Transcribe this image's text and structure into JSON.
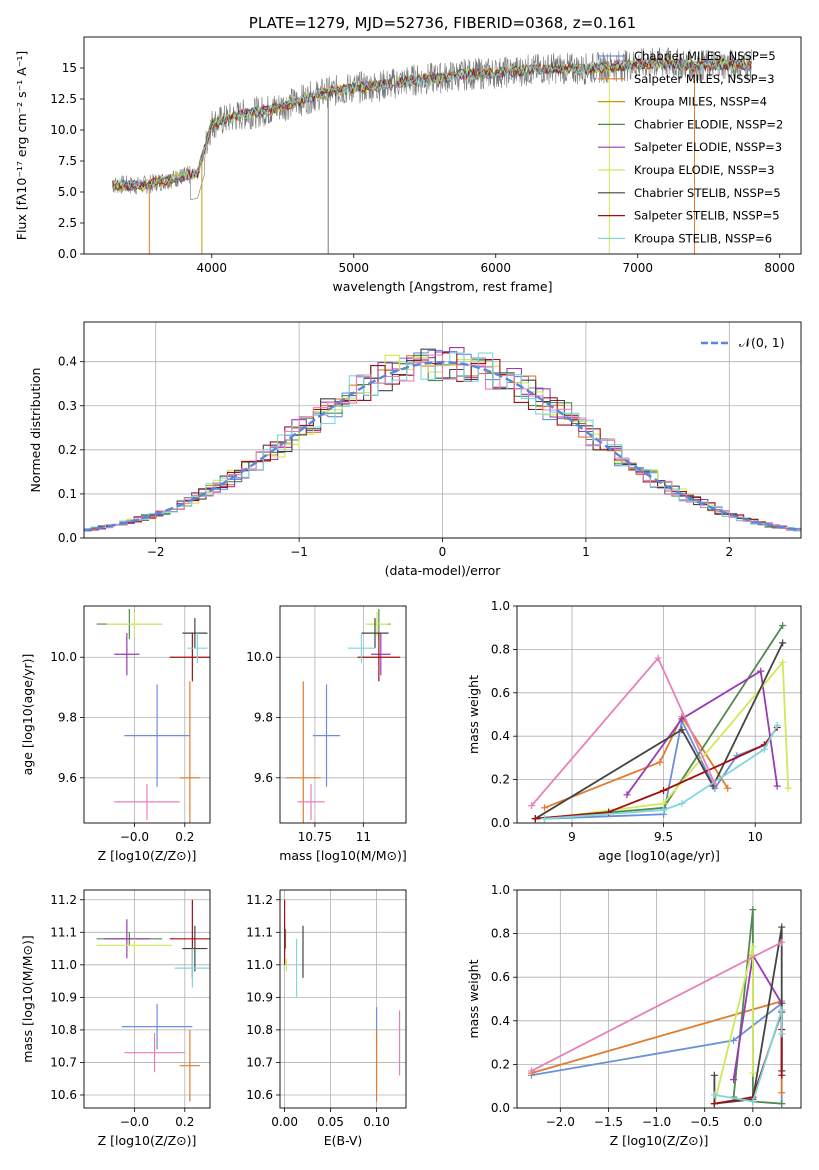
{
  "colors": {
    "blue": "#6a8fdc",
    "orange": "#e07c2c",
    "green": "#4f8a52",
    "purple": "#9a3ab5",
    "yellow": "#d0e85a",
    "dark": "#444444",
    "red": "#a01010",
    "cyan": "#7fd7dc",
    "pink": "#e880b8",
    "gray": "#888888",
    "normal": "#5588dd"
  },
  "chart_data": [
    {
      "id": "spectrum",
      "type": "line",
      "title": "PLATE=1279, MJD=52736, FIBERID=0368, z=0.161",
      "xlabel": "wavelength [Angstrom, rest frame]",
      "ylabel": "Flux [fλ10⁻¹⁷ erg cm⁻² s⁻¹ A⁻¹]",
      "xlim": [
        3100,
        8150
      ],
      "ylim": [
        0,
        17.5
      ],
      "xticks": [
        4000,
        5000,
        6000,
        7000,
        8000
      ],
      "yticks": [
        0.0,
        2.5,
        5.0,
        7.5,
        10.0,
        12.5,
        15.0
      ],
      "grid": false,
      "legend_position": "right",
      "legend": [
        "Chabrier MILES, NSSP=5",
        "Salpeter MILES, NSSP=3",
        "Kroupa MILES, NSSP=4",
        "Chabrier ELODIE, NSSP=2",
        "Salpeter ELODIE, NSSP=3",
        "Kroupa ELODIE, NSSP=3",
        "Chabrier STELIB, NSSP=5",
        "Salpeter STELIB, NSSP=5",
        "Kroupa STELIB, NSSP=6"
      ],
      "legend_colors": [
        "#6a8fdc",
        "#e07c2c",
        "#c0a000",
        "#4f8a52",
        "#9a3ab5",
        "#d0e85a",
        "#444444",
        "#a01010",
        "#7fd7dc"
      ],
      "continuum": {
        "x": [
          3300,
          3500,
          3700,
          3900,
          4000,
          4200,
          4400,
          4600,
          4800,
          5000,
          5200,
          5400,
          5600,
          5800,
          6000,
          6200,
          6400,
          6600,
          6800,
          7000,
          7200,
          7400,
          7600,
          7800
        ],
        "y": [
          5.6,
          5.5,
          6.0,
          6.5,
          10.5,
          11.2,
          11.6,
          12.3,
          13.0,
          13.4,
          13.6,
          14.0,
          14.2,
          14.5,
          14.6,
          14.8,
          15.0,
          14.9,
          15.1,
          15.3,
          15.4,
          15.2,
          15.3,
          15.2
        ]
      }
    },
    {
      "id": "residuals",
      "type": "histogram",
      "xlabel": "(data-model)/error",
      "ylabel": "Normed distribution",
      "xlim": [
        -2.5,
        2.5
      ],
      "ylim": [
        0,
        0.49
      ],
      "xticks": [
        -2,
        -1,
        0,
        1,
        2
      ],
      "yticks": [
        0.0,
        0.1,
        0.2,
        0.3,
        0.4
      ],
      "grid": true,
      "legend_position": "top-right",
      "legend": "𝒩(0, 1)",
      "bin_width": 0.1
    },
    {
      "id": "age-vs-z",
      "type": "scatter",
      "xlabel": "Z [log10(Z/Z⊙)]",
      "ylabel": "age  [log10(age/yr)]",
      "xlim": [
        -0.2,
        0.3
      ],
      "ylim": [
        9.45,
        10.17
      ],
      "xticks": [
        -0.0,
        0.2
      ],
      "xtick_labels": [
        "−0.0",
        "0.2"
      ],
      "yticks": [
        9.6,
        9.8,
        10.0
      ],
      "grid": true,
      "points": [
        {
          "x": 0.09,
          "xe": 0.13,
          "y": 9.74,
          "ye": 0.17,
          "c": "blue"
        },
        {
          "x": 0.22,
          "xe": 0.04,
          "y": 9.6,
          "ye": 0.32,
          "c": "orange"
        },
        {
          "x": -0.02,
          "xe": 0.13,
          "y": 10.11,
          "ye": 0.05,
          "c": "green"
        },
        {
          "x": -0.03,
          "xe": 0.05,
          "y": 10.01,
          "ye": 0.07,
          "c": "purple"
        },
        {
          "x": 0.0,
          "xe": 0.11,
          "y": 10.11,
          "ye": 0.04,
          "c": "yellow"
        },
        {
          "x": 0.24,
          "xe": 0.05,
          "y": 10.08,
          "ye": 0.05,
          "c": "dark"
        },
        {
          "x": 0.23,
          "xe": 0.09,
          "y": 10.0,
          "ye": 0.08,
          "c": "red"
        },
        {
          "x": 0.25,
          "xe": 0.04,
          "y": 10.03,
          "ye": 0.05,
          "c": "cyan"
        },
        {
          "x": 0.05,
          "xe": 0.13,
          "y": 9.52,
          "ye": 0.06,
          "c": "pink"
        }
      ]
    },
    {
      "id": "age-vs-mass",
      "type": "scatter",
      "xlabel": "mass [log10(M/M⊙)]",
      "ylabel": "",
      "xlim": [
        10.57,
        11.22
      ],
      "ylim": [
        9.45,
        10.17
      ],
      "xticks": [
        10.75,
        11.0
      ],
      "yticks": [
        9.6,
        9.8,
        10.0
      ],
      "grid": true,
      "points": [
        {
          "x": 10.81,
          "xe": 0.07,
          "y": 9.74,
          "ye": 0.17,
          "c": "blue"
        },
        {
          "x": 10.69,
          "xe": 0.09,
          "y": 9.6,
          "ye": 0.32,
          "c": "orange"
        },
        {
          "x": 11.08,
          "xe": 0.06,
          "y": 10.11,
          "ye": 0.05,
          "c": "green"
        },
        {
          "x": 11.09,
          "xe": 0.05,
          "y": 10.01,
          "ye": 0.07,
          "c": "purple"
        },
        {
          "x": 11.07,
          "xe": 0.06,
          "y": 10.11,
          "ye": 0.04,
          "c": "yellow"
        },
        {
          "x": 11.06,
          "xe": 0.07,
          "y": 10.08,
          "ye": 0.05,
          "c": "dark"
        },
        {
          "x": 11.08,
          "xe": 0.11,
          "y": 10.0,
          "ye": 0.08,
          "c": "red"
        },
        {
          "x": 10.99,
          "xe": 0.07,
          "y": 10.03,
          "ye": 0.05,
          "c": "cyan"
        },
        {
          "x": 10.73,
          "xe": 0.07,
          "y": 9.52,
          "ye": 0.06,
          "c": "pink"
        }
      ]
    },
    {
      "id": "weight-vs-age",
      "type": "line",
      "xlabel": "age  [log10(age/yr)]",
      "ylabel": "mass weight",
      "xlim": [
        8.7,
        10.25
      ],
      "ylim": [
        0,
        1.0
      ],
      "xticks": [
        9.0,
        9.5,
        10.0
      ],
      "yticks": [
        0.0,
        0.2,
        0.4,
        0.6,
        0.8,
        1.0
      ],
      "grid": true,
      "series": [
        {
          "c": "blue",
          "x": [
            8.85,
            9.5,
            9.6,
            9.78,
            9.9,
            10.05
          ],
          "y": [
            0.02,
            0.04,
            0.47,
            0.16,
            0.31,
            0.36
          ]
        },
        {
          "c": "orange",
          "x": [
            8.85,
            9.48,
            9.6,
            9.85
          ],
          "y": [
            0.07,
            0.28,
            0.49,
            0.16
          ]
        },
        {
          "c": "green",
          "x": [
            8.8,
            9.5,
            10.15
          ],
          "y": [
            0.02,
            0.07,
            0.91
          ]
        },
        {
          "c": "purple",
          "x": [
            9.3,
            9.6,
            10.03,
            10.12
          ],
          "y": [
            0.13,
            0.48,
            0.7,
            0.17
          ]
        },
        {
          "c": "yellow",
          "x": [
            8.85,
            9.5,
            10.15,
            10.18
          ],
          "y": [
            0.02,
            0.09,
            0.74,
            0.16
          ]
        },
        {
          "c": "dark",
          "x": [
            8.8,
            9.6,
            9.77,
            10.15
          ],
          "y": [
            0.02,
            0.43,
            0.17,
            0.83
          ]
        },
        {
          "c": "red",
          "x": [
            8.8,
            9.2,
            9.5,
            10.05,
            10.12
          ],
          "y": [
            0.02,
            0.05,
            0.15,
            0.36,
            0.44
          ]
        },
        {
          "c": "cyan",
          "x": [
            8.85,
            9.5,
            9.6,
            10.05,
            10.12
          ],
          "y": [
            0.02,
            0.06,
            0.09,
            0.34,
            0.45
          ]
        },
        {
          "c": "pink",
          "x": [
            8.78,
            9.47,
            9.78
          ],
          "y": [
            0.08,
            0.76,
            0.18
          ]
        }
      ]
    },
    {
      "id": "mass-vs-z",
      "type": "scatter",
      "xlabel": "Z [log10(Z/Z⊙)]",
      "ylabel": "mass [log10(M/M⊙)]",
      "xlim": [
        -0.2,
        0.3
      ],
      "ylim": [
        10.56,
        11.23
      ],
      "xticks": [
        -0.0,
        0.2
      ],
      "xtick_labels": [
        "−0.0",
        "0.2"
      ],
      "yticks": [
        10.6,
        10.7,
        10.8,
        10.9,
        11.0,
        11.1,
        11.2
      ],
      "grid": true,
      "points": [
        {
          "x": 0.09,
          "xe": 0.14,
          "y": 10.81,
          "ye": 0.07,
          "c": "blue"
        },
        {
          "x": 0.22,
          "xe": 0.04,
          "y": 10.69,
          "ye": 0.11,
          "c": "orange"
        },
        {
          "x": -0.02,
          "xe": 0.13,
          "y": 11.08,
          "ye": 0.02,
          "c": "green"
        },
        {
          "x": -0.03,
          "xe": 0.09,
          "y": 11.08,
          "ye": 0.06,
          "c": "purple"
        },
        {
          "x": 0.0,
          "xe": 0.15,
          "y": 11.06,
          "ye": 0.02,
          "c": "yellow"
        },
        {
          "x": 0.24,
          "xe": 0.05,
          "y": 11.05,
          "ye": 0.07,
          "c": "dark"
        },
        {
          "x": 0.23,
          "xe": 0.09,
          "y": 11.08,
          "ye": 0.12,
          "c": "red"
        },
        {
          "x": 0.23,
          "xe": 0.07,
          "y": 10.99,
          "ye": 0.06,
          "c": "cyan"
        },
        {
          "x": 0.08,
          "xe": 0.12,
          "y": 10.73,
          "ye": 0.06,
          "c": "pink"
        }
      ]
    },
    {
      "id": "mass-vs-ebv",
      "type": "scatter",
      "xlabel": "E(B-V)",
      "ylabel": "",
      "xlim": [
        -0.005,
        0.132
      ],
      "ylim": [
        10.56,
        11.23
      ],
      "xticks": [
        0.0,
        0.05,
        0.1
      ],
      "xtick_labels": [
        "0.00",
        "0.05",
        "0.10"
      ],
      "yticks": [
        10.6,
        10.7,
        10.8,
        10.9,
        11.0,
        11.1,
        11.2
      ],
      "grid": true,
      "points": [
        {
          "x": 0.1,
          "y": 10.81,
          "ye": 0.06,
          "c": "blue"
        },
        {
          "x": 0.1,
          "y": 10.69,
          "ye": 0.11,
          "c": "orange"
        },
        {
          "x": 0.001,
          "y": 11.08,
          "ye": 0.03,
          "c": "green"
        },
        {
          "x": 0.0,
          "y": 11.08,
          "ye": 0.04,
          "c": "purple"
        },
        {
          "x": 0.002,
          "y": 11.0,
          "ye": 0.02,
          "c": "yellow"
        },
        {
          "x": 0.02,
          "y": 11.04,
          "ye": 0.08,
          "c": "dark"
        },
        {
          "x": 0.0,
          "y": 11.1,
          "ye": 0.1,
          "c": "red"
        },
        {
          "x": 0.013,
          "y": 10.99,
          "ye": 0.09,
          "c": "cyan"
        },
        {
          "x": 0.125,
          "y": 10.76,
          "ye": 0.1,
          "c": "pink"
        }
      ]
    },
    {
      "id": "weight-vs-z",
      "type": "line",
      "xlabel": "Z [log10(Z/Z⊙)]",
      "ylabel": "mass weight",
      "xlim": [
        -2.45,
        0.5
      ],
      "ylim": [
        0,
        1.0
      ],
      "xticks": [
        -2.0,
        -1.5,
        -1.0,
        -0.5,
        0.0
      ],
      "xtick_labels": [
        "−2.0",
        "−1.5",
        "−1.0",
        "−0.5",
        "0.0"
      ],
      "yticks": [
        0.0,
        0.2,
        0.4,
        0.6,
        0.8,
        1.0
      ],
      "grid": true,
      "series": [
        {
          "c": "blue",
          "x": [
            -2.3,
            -0.2,
            0.3,
            0.3
          ],
          "y": [
            0.15,
            0.31,
            0.48,
            0.02
          ]
        },
        {
          "c": "orange",
          "x": [
            -2.3,
            0.3,
            0.3
          ],
          "y": [
            0.16,
            0.49,
            0.07
          ]
        },
        {
          "c": "green",
          "x": [
            -0.2,
            0.0,
            0.0,
            0.3
          ],
          "y": [
            0.05,
            0.91,
            0.03,
            0.02
          ]
        },
        {
          "c": "purple",
          "x": [
            -0.2,
            0.0,
            0.3,
            0.3
          ],
          "y": [
            0.13,
            0.7,
            0.48,
            0.17
          ]
        },
        {
          "c": "yellow",
          "x": [
            -0.4,
            0.0,
            0.0
          ],
          "y": [
            0.02,
            0.74,
            0.16
          ]
        },
        {
          "c": "dark",
          "x": [
            -0.4,
            -0.4,
            0.0,
            0.3,
            0.3
          ],
          "y": [
            0.15,
            0.02,
            0.04,
            0.83,
            0.17
          ]
        },
        {
          "c": "red",
          "x": [
            -0.4,
            0.0,
            0.3,
            0.3,
            0.3
          ],
          "y": [
            0.02,
            0.05,
            0.44,
            0.36,
            0.15
          ]
        },
        {
          "c": "cyan",
          "x": [
            -0.4,
            0.0,
            0.3,
            0.3
          ],
          "y": [
            0.06,
            0.03,
            0.45,
            0.34
          ]
        },
        {
          "c": "pink",
          "x": [
            -2.3,
            0.3
          ],
          "y": [
            0.17,
            0.76
          ]
        }
      ]
    }
  ]
}
